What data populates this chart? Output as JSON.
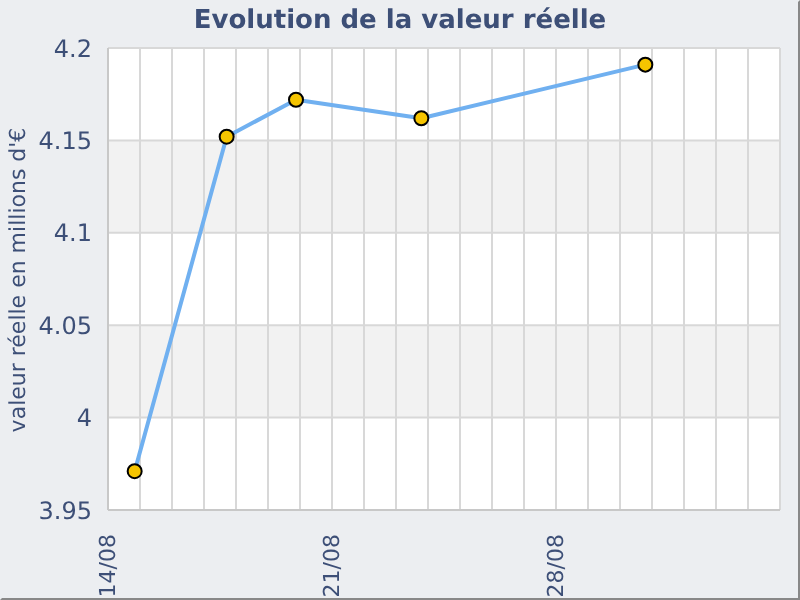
{
  "chart_data": {
    "type": "line",
    "title": "Evolution de la valeur réelle",
    "ylabel": "valeur réelle en millions d'€",
    "x": [
      "--08-14T20:00",
      "--08-17T17:00",
      "--08-19T21:00",
      "--08-23T19:00",
      "--08-30T19:00"
    ],
    "series": [
      {
        "color": "#70b0f0",
        "values": [
          3.971,
          4.152,
          4.172,
          4.162,
          4.191
        ]
      }
    ],
    "xlim": [
      "--08-14",
      "--09-04"
    ],
    "xticks": [
      {
        "value": "--08-14",
        "label": "14/08"
      },
      {
        "value": "--08-15",
        "label": null
      },
      {
        "value": "--08-16",
        "label": null
      },
      {
        "value": "--08-17",
        "label": null
      },
      {
        "value": "--08-18",
        "label": null
      },
      {
        "value": "--08-19",
        "label": null
      },
      {
        "value": "--08-20",
        "label": null
      },
      {
        "value": "--08-21",
        "label": "21/08"
      },
      {
        "value": "--08-22",
        "label": null
      },
      {
        "value": "--08-23",
        "label": null
      },
      {
        "value": "--08-24",
        "label": null
      },
      {
        "value": "--08-25",
        "label": null
      },
      {
        "value": "--08-26",
        "label": null
      },
      {
        "value": "--08-27",
        "label": null
      },
      {
        "value": "--08-28",
        "label": "28/08"
      },
      {
        "value": "--08-29",
        "label": null
      },
      {
        "value": "--08-30",
        "label": null
      },
      {
        "value": "--08-31",
        "label": null
      },
      {
        "value": "--09-01",
        "label": null
      },
      {
        "value": "--09-02",
        "label": null
      },
      {
        "value": "--09-03",
        "label": null
      },
      {
        "value": "--09-04",
        "label": null
      }
    ],
    "ylim": [
      3.95,
      4.2
    ],
    "yticks": [
      3.95,
      4,
      4.05,
      4.1,
      4.15,
      4.2
    ],
    "grid": true,
    "legend": false,
    "marker": "circle",
    "line_style": "solid"
  }
}
